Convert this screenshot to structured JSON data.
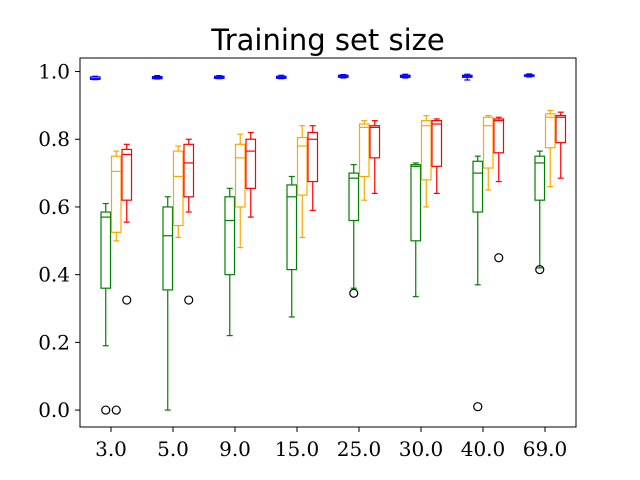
{
  "chart_data": {
    "type": "box",
    "title": "Training set size",
    "xlabel": "",
    "ylabel": "",
    "categories": [
      "3.0",
      "5.0",
      "9.0",
      "15.0",
      "25.0",
      "30.0",
      "40.0",
      "69.0"
    ],
    "ylim": [
      -0.05,
      1.04
    ],
    "yticks": [
      0.0,
      0.2,
      0.4,
      0.6,
      0.8,
      1.0
    ],
    "ytick_labels": [
      "0.0",
      "0.2",
      "0.4",
      "0.6",
      "0.8",
      "1.0"
    ],
    "grid": false,
    "series": [
      {
        "color": "#0000ff",
        "boxes": [
          {
            "whislo": 0.976,
            "q1": 0.977,
            "med": 0.979,
            "q3": 0.984,
            "whishi": 0.986,
            "fliers": []
          },
          {
            "whislo": 0.978,
            "q1": 0.979,
            "med": 0.982,
            "q3": 0.985,
            "whishi": 0.988,
            "fliers": []
          },
          {
            "whislo": 0.979,
            "q1": 0.98,
            "med": 0.983,
            "q3": 0.986,
            "whishi": 0.988,
            "fliers": []
          },
          {
            "whislo": 0.979,
            "q1": 0.98,
            "med": 0.983,
            "q3": 0.986,
            "whishi": 0.989,
            "fliers": []
          },
          {
            "whislo": 0.981,
            "q1": 0.983,
            "med": 0.986,
            "q3": 0.989,
            "whishi": 0.991,
            "fliers": []
          },
          {
            "whislo": 0.981,
            "q1": 0.983,
            "med": 0.986,
            "q3": 0.989,
            "whishi": 0.992,
            "fliers": []
          },
          {
            "whislo": 0.975,
            "q1": 0.983,
            "med": 0.986,
            "q3": 0.989,
            "whishi": 0.992,
            "fliers": []
          },
          {
            "whislo": 0.984,
            "q1": 0.986,
            "med": 0.988,
            "q3": 0.99,
            "whishi": 0.993,
            "fliers": []
          }
        ]
      },
      {
        "color": "#008000",
        "boxes": [
          {
            "whislo": 0.19,
            "q1": 0.36,
            "med": 0.57,
            "q3": 0.585,
            "whishi": 0.61,
            "fliers": [
              0.0
            ]
          },
          {
            "whislo": 0.0,
            "q1": 0.355,
            "med": 0.515,
            "q3": 0.6,
            "whishi": 0.63,
            "fliers": []
          },
          {
            "whislo": 0.22,
            "q1": 0.4,
            "med": 0.56,
            "q3": 0.63,
            "whishi": 0.655,
            "fliers": []
          },
          {
            "whislo": 0.275,
            "q1": 0.415,
            "med": 0.63,
            "q3": 0.665,
            "whishi": 0.69,
            "fliers": []
          },
          {
            "whislo": 0.36,
            "q1": 0.56,
            "med": 0.685,
            "q3": 0.7,
            "whishi": 0.725,
            "fliers": [
              0.345
            ]
          },
          {
            "whislo": 0.335,
            "q1": 0.5,
            "med": 0.72,
            "q3": 0.725,
            "whishi": 0.73,
            "fliers": []
          },
          {
            "whislo": 0.37,
            "q1": 0.585,
            "med": 0.7,
            "q3": 0.735,
            "whishi": 0.75,
            "fliers": [
              0.01
            ]
          },
          {
            "whislo": 0.42,
            "q1": 0.62,
            "med": 0.73,
            "q3": 0.75,
            "whishi": 0.765,
            "fliers": [
              0.415
            ]
          }
        ]
      },
      {
        "color": "#ffa500",
        "boxes": [
          {
            "whislo": 0.5,
            "q1": 0.525,
            "med": 0.705,
            "q3": 0.75,
            "whishi": 0.765,
            "fliers": [
              0.0
            ]
          },
          {
            "whislo": 0.51,
            "q1": 0.545,
            "med": 0.69,
            "q3": 0.765,
            "whishi": 0.78,
            "fliers": []
          },
          {
            "whislo": 0.48,
            "q1": 0.6,
            "med": 0.745,
            "q3": 0.785,
            "whishi": 0.815,
            "fliers": []
          },
          {
            "whislo": 0.51,
            "q1": 0.635,
            "med": 0.78,
            "q3": 0.805,
            "whishi": 0.84,
            "fliers": []
          },
          {
            "whislo": 0.62,
            "q1": 0.69,
            "med": 0.835,
            "q3": 0.845,
            "whishi": 0.855,
            "fliers": []
          },
          {
            "whislo": 0.6,
            "q1": 0.68,
            "med": 0.84,
            "q3": 0.855,
            "whishi": 0.87,
            "fliers": []
          },
          {
            "whislo": 0.65,
            "q1": 0.715,
            "med": 0.84,
            "q3": 0.865,
            "whishi": 0.87,
            "fliers": []
          },
          {
            "whislo": 0.66,
            "q1": 0.775,
            "med": 0.865,
            "q3": 0.875,
            "whishi": 0.885,
            "fliers": []
          }
        ]
      },
      {
        "color": "#ff0000",
        "boxes": [
          {
            "whislo": 0.555,
            "q1": 0.62,
            "med": 0.755,
            "q3": 0.77,
            "whishi": 0.785,
            "fliers": [
              0.325
            ]
          },
          {
            "whislo": 0.585,
            "q1": 0.63,
            "med": 0.73,
            "q3": 0.785,
            "whishi": 0.8,
            "fliers": [
              0.325
            ]
          },
          {
            "whislo": 0.57,
            "q1": 0.655,
            "med": 0.765,
            "q3": 0.8,
            "whishi": 0.82,
            "fliers": []
          },
          {
            "whislo": 0.59,
            "q1": 0.675,
            "med": 0.8,
            "q3": 0.82,
            "whishi": 0.84,
            "fliers": []
          },
          {
            "whislo": 0.64,
            "q1": 0.745,
            "med": 0.835,
            "q3": 0.84,
            "whishi": 0.855,
            "fliers": []
          },
          {
            "whislo": 0.64,
            "q1": 0.72,
            "med": 0.845,
            "q3": 0.855,
            "whishi": 0.86,
            "fliers": []
          },
          {
            "whislo": 0.675,
            "q1": 0.76,
            "med": 0.855,
            "q3": 0.86,
            "whishi": 0.865,
            "fliers": [
              0.45
            ]
          },
          {
            "whislo": 0.685,
            "q1": 0.79,
            "med": 0.865,
            "q3": 0.87,
            "whishi": 0.88,
            "fliers": []
          }
        ]
      }
    ]
  }
}
